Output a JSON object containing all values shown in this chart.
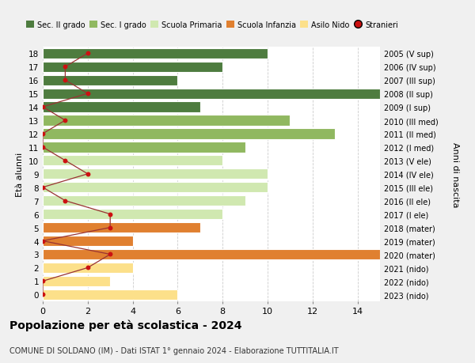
{
  "ages": [
    0,
    1,
    2,
    3,
    4,
    5,
    6,
    7,
    8,
    9,
    10,
    11,
    12,
    13,
    14,
    15,
    16,
    17,
    18
  ],
  "right_labels": [
    "2023 (nido)",
    "2022 (nido)",
    "2021 (nido)",
    "2020 (mater)",
    "2019 (mater)",
    "2018 (mater)",
    "2017 (I ele)",
    "2016 (II ele)",
    "2015 (III ele)",
    "2014 (IV ele)",
    "2013 (V ele)",
    "2012 (I med)",
    "2011 (II med)",
    "2010 (III med)",
    "2009 (I sup)",
    "2008 (II sup)",
    "2007 (III sup)",
    "2006 (IV sup)",
    "2005 (V sup)"
  ],
  "bar_values": [
    6,
    3,
    4,
    15,
    4,
    7,
    8,
    9,
    10,
    10,
    8,
    9,
    13,
    11,
    7,
    15,
    6,
    8,
    10
  ],
  "bar_colors": [
    "#fce08a",
    "#fce08a",
    "#fce08a",
    "#e08030",
    "#e08030",
    "#e08030",
    "#d0e8b0",
    "#d0e8b0",
    "#d0e8b0",
    "#d0e8b0",
    "#d0e8b0",
    "#90b860",
    "#90b860",
    "#90b860",
    "#4e7c3f",
    "#4e7c3f",
    "#4e7c3f",
    "#4e7c3f",
    "#4e7c3f"
  ],
  "stranieri_values": [
    0,
    0,
    2,
    3,
    0,
    3,
    3,
    1,
    0,
    2,
    1,
    0,
    0,
    1,
    0,
    2,
    1,
    1,
    2
  ],
  "title": "Popolazione per età scolastica - 2024",
  "subtitle": "COMUNE DI SOLDANO (IM) - Dati ISTAT 1° gennaio 2024 - Elaborazione TUTTITALIA.IT",
  "ylabel": "Età alunni",
  "right_ylabel": "Anni di nascita",
  "xlim": [
    0,
    15
  ],
  "xticks": [
    0,
    2,
    4,
    6,
    8,
    10,
    12,
    14
  ],
  "legend_labels": [
    "Sec. II grado",
    "Sec. I grado",
    "Scuola Primaria",
    "Scuola Infanzia",
    "Asilo Nido",
    "Stranieri"
  ],
  "legend_colors": [
    "#4e7c3f",
    "#90b860",
    "#d0e8b0",
    "#e08030",
    "#fce08a",
    "#cc1111"
  ],
  "fig_bg_color": "#f0f0f0",
  "plot_bg_color": "#ffffff",
  "bar_edge_color": "white",
  "grid_color": "#cccccc",
  "stranieri_color": "#cc1111",
  "stranieri_line_color": "#993333"
}
